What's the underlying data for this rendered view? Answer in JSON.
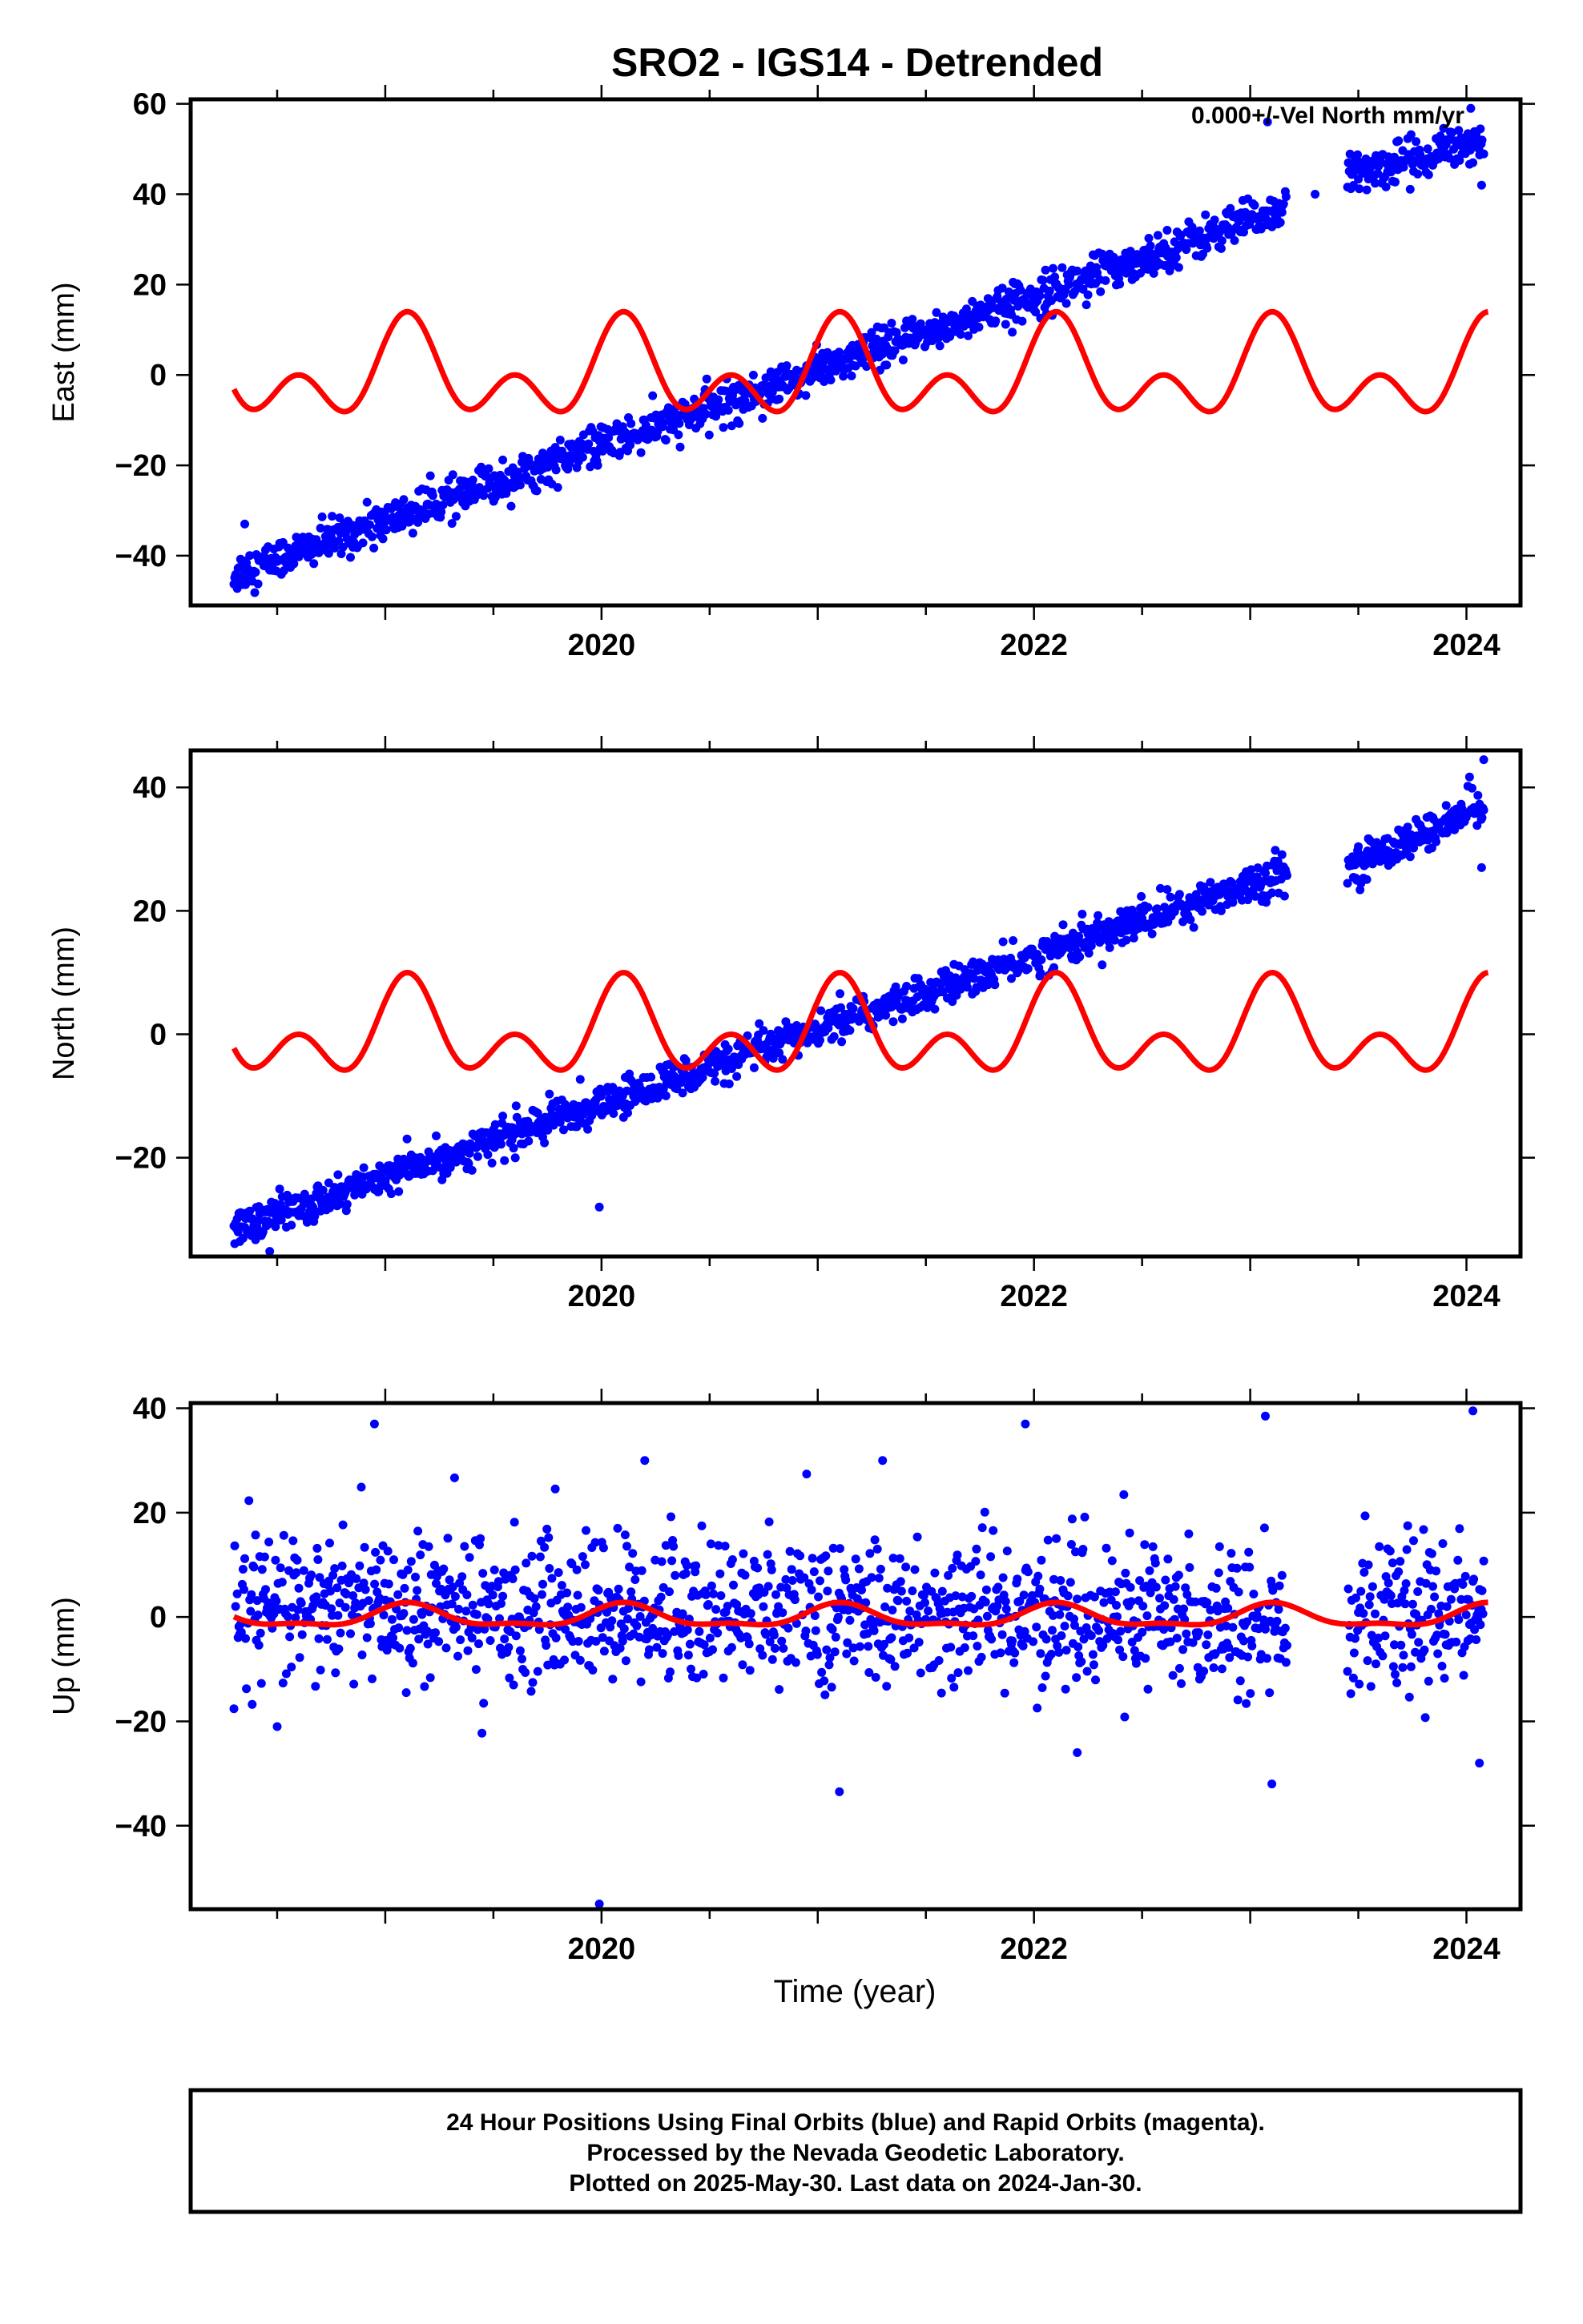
{
  "figure": {
    "title": "SRO2 - IGS14 - Detrended",
    "x_label": "Time (year)",
    "footer_lines": [
      "24 Hour Positions Using Final Orbits (blue) and Rapid Orbits (magenta).",
      "Processed by the Nevada Geodetic Laboratory.",
      "Plotted on 2025-May-30. Last data on 2024-Jan-30."
    ],
    "colors": {
      "final_orbits": "#0000ff",
      "seasonal_model": "#ff0000",
      "frame": "#000000"
    }
  },
  "chart_data": [
    {
      "type": "scatter",
      "panel": "east",
      "ylabel": "East (mm)",
      "annotation": "0.000+/-Vel North mm/yr",
      "xlim": [
        2018.1,
        2024.25
      ],
      "ylim": [
        -51,
        61
      ],
      "x_ticks": [
        2020,
        2022,
        2024
      ],
      "y_ticks": [
        -40,
        -20,
        0,
        20,
        40,
        60
      ],
      "grid": false,
      "series": [
        {
          "kind": "points",
          "trend_segments": [
            {
              "x_start": 2018.3,
              "x_end": 2023.17,
              "y_start": -44,
              "y_end": 37
            },
            {
              "x_start": 2023.45,
              "x_end": 2024.08,
              "y_start": 44,
              "y_end": 52
            }
          ],
          "scatter_mm": 2.2,
          "outliers": [
            {
              "x": 2018.35,
              "y": -33
            },
            {
              "x": 2023.08,
              "y": 56
            },
            {
              "x": 2024.02,
              "y": 59
            },
            {
              "x": 2023.3,
              "y": 40
            },
            {
              "x": 2024.07,
              "y": 42
            }
          ]
        },
        {
          "kind": "line",
          "model": "seasonal",
          "x_start": 2018.3,
          "x_end": 2024.1,
          "annual_amp": 7,
          "semi_annual_amp": 7,
          "phase_ref": 2019.0
        }
      ]
    },
    {
      "type": "scatter",
      "panel": "north",
      "ylabel": "North (mm)",
      "xlim": [
        2018.1,
        2024.25
      ],
      "ylim": [
        -36,
        46
      ],
      "x_ticks": [
        2020,
        2022,
        2024
      ],
      "y_ticks": [
        -20,
        0,
        20,
        40
      ],
      "grid": false,
      "series": [
        {
          "kind": "points",
          "trend_segments": [
            {
              "x_start": 2018.3,
              "x_end": 2023.17,
              "y_start": -31.5,
              "y_end": 26.5
            },
            {
              "x_start": 2023.45,
              "x_end": 2024.08,
              "y_start": 27,
              "y_end": 37
            }
          ],
          "scatter_mm": 1.5,
          "outliers": [
            {
              "x": 2019.99,
              "y": -28
            },
            {
              "x": 2024.08,
              "y": 44.5
            },
            {
              "x": 2024.07,
              "y": 27
            },
            {
              "x": 2020.3,
              "y": -5
            }
          ]
        },
        {
          "kind": "line",
          "model": "seasonal",
          "x_start": 2018.3,
          "x_end": 2024.1,
          "annual_amp": 5,
          "semi_annual_amp": 5,
          "phase_ref": 2019.0
        }
      ]
    },
    {
      "type": "scatter",
      "panel": "up",
      "ylabel": "Up (mm)",
      "xlim": [
        2018.1,
        2024.25
      ],
      "ylim": [
        -56,
        41
      ],
      "x_ticks": [
        2020,
        2022,
        2024
      ],
      "y_ticks": [
        -40,
        -20,
        0,
        20,
        40
      ],
      "grid": false,
      "series": [
        {
          "kind": "points",
          "trend_segments": [
            {
              "x_start": 2018.3,
              "x_end": 2023.17,
              "y_start": 2,
              "y_end": 0
            },
            {
              "x_start": 2023.45,
              "x_end": 2024.08,
              "y_start": -2,
              "y_end": 2
            }
          ],
          "scatter_mm": 7,
          "outliers": [
            {
              "x": 2018.95,
              "y": 37
            },
            {
              "x": 2019.99,
              "y": -55
            },
            {
              "x": 2021.1,
              "y": -33.5
            },
            {
              "x": 2023.07,
              "y": 38.5
            },
            {
              "x": 2023.1,
              "y": -32
            },
            {
              "x": 2024.03,
              "y": 39.5
            },
            {
              "x": 2024.06,
              "y": -28
            },
            {
              "x": 2018.5,
              "y": -21
            },
            {
              "x": 2021.96,
              "y": 37
            },
            {
              "x": 2022.2,
              "y": -26
            },
            {
              "x": 2021.3,
              "y": 30
            },
            {
              "x": 2020.2,
              "y": 30
            }
          ]
        },
        {
          "kind": "line",
          "model": "seasonal",
          "x_start": 2018.3,
          "x_end": 2024.1,
          "annual_amp": 2,
          "semi_annual_amp": 0.8,
          "phase_ref": 2019.0
        }
      ]
    }
  ]
}
